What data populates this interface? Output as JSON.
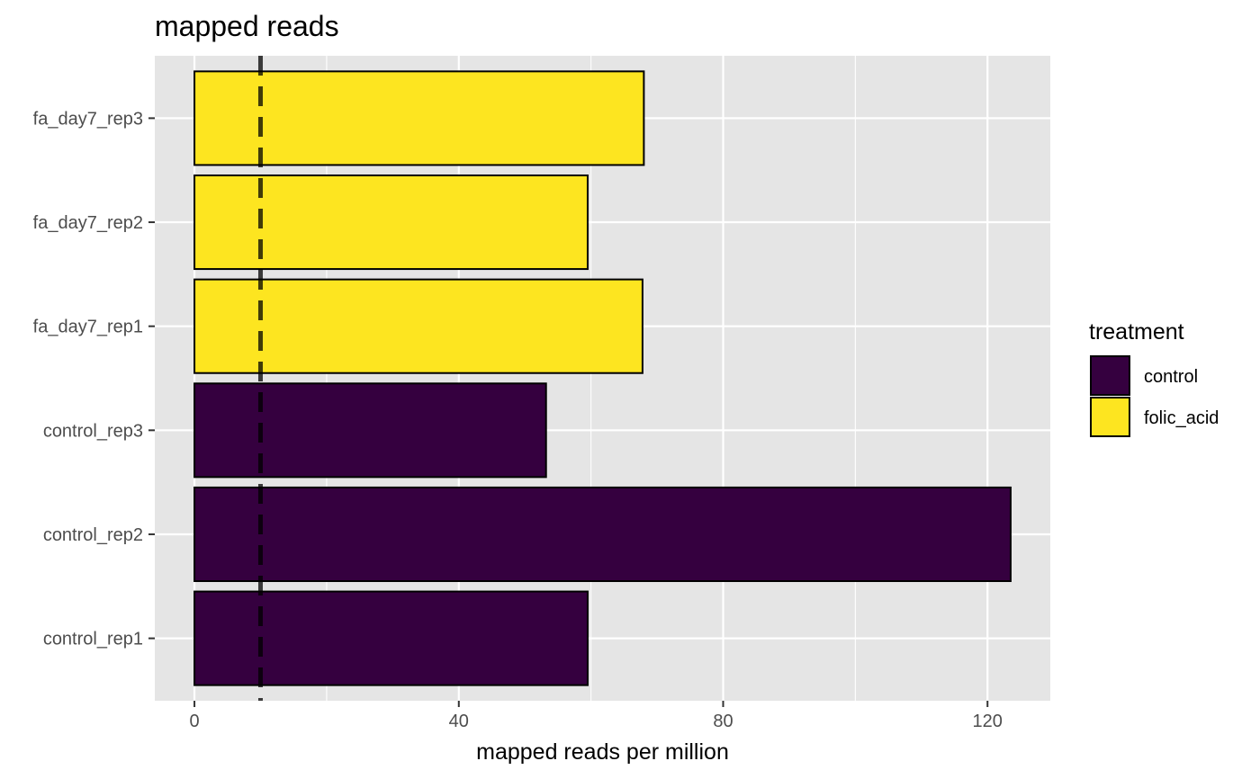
{
  "chart_data": {
    "type": "bar",
    "orientation": "horizontal",
    "title": "mapped reads",
    "xlabel": "mapped reads per million",
    "ylabel": "",
    "categories": [
      "control_rep1",
      "control_rep2",
      "control_rep3",
      "fa_day7_rep1",
      "fa_day7_rep2",
      "fa_day7_rep3"
    ],
    "values": [
      59.5,
      123.5,
      53.2,
      67.8,
      59.5,
      68.0
    ],
    "groups": [
      "control",
      "control",
      "control",
      "folic_acid",
      "folic_acid",
      "folic_acid"
    ],
    "xlim": [
      -6,
      129.5
    ],
    "xticks": [
      0,
      40,
      80,
      120
    ],
    "xgrid_minor": [
      20,
      60,
      100
    ],
    "reference_line": {
      "x": 10,
      "style": "dashed"
    },
    "grid": true,
    "legend": {
      "title": "treatment",
      "placement": "right",
      "entries": [
        {
          "label": "control",
          "color": "#35003f"
        },
        {
          "label": "folic_acid",
          "color": "#fde520"
        }
      ]
    },
    "panel_background": "#e5e5e5"
  }
}
